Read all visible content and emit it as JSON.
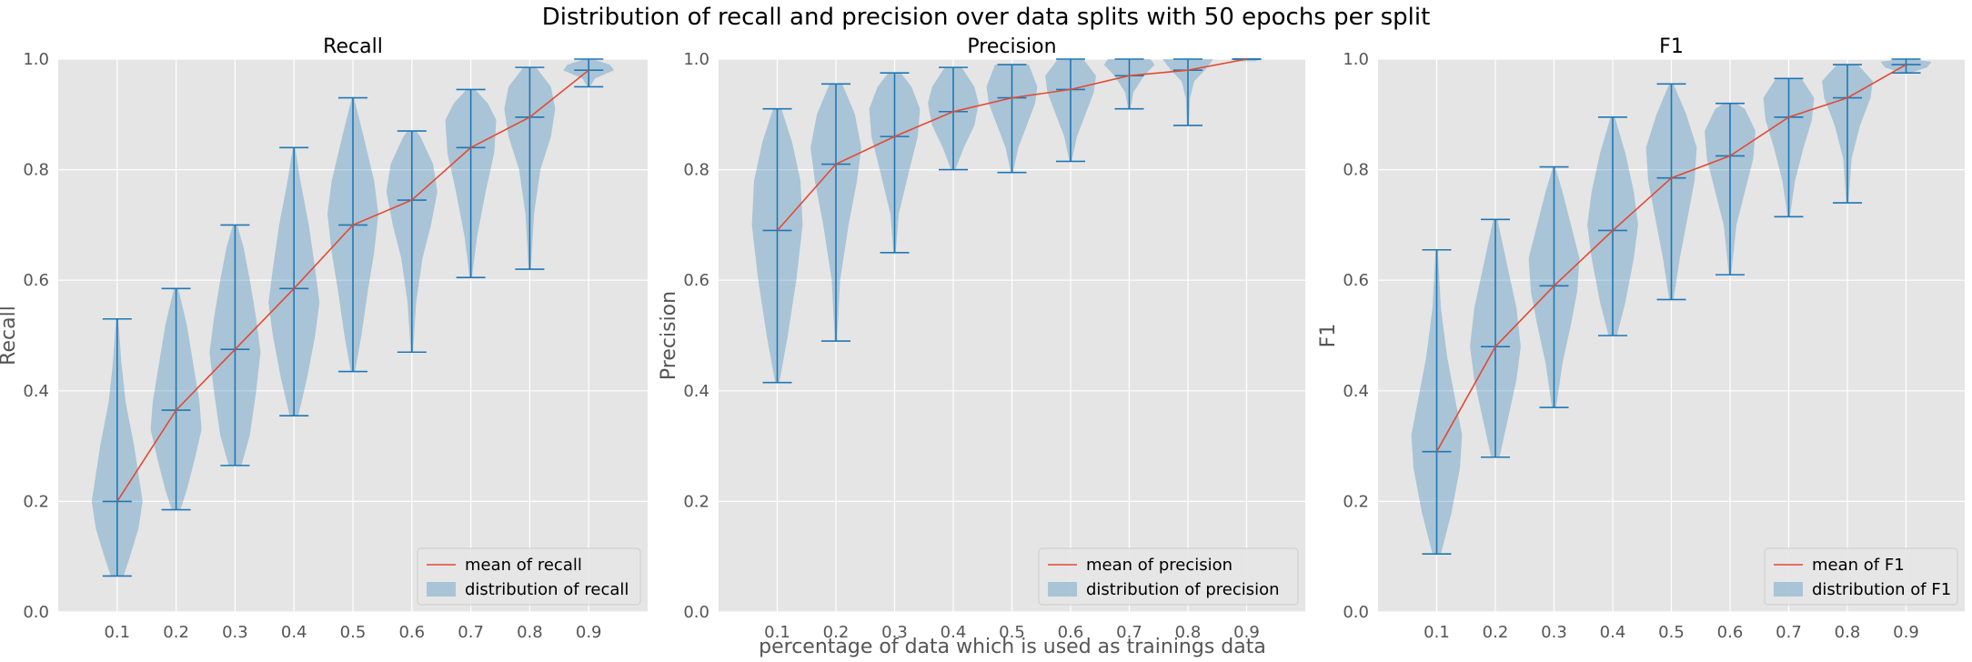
{
  "figure": {
    "suptitle": "Distribution of recall and precision over data splits with 50 epochs per split",
    "xlabel": "percentage of data which is used as trainings data"
  },
  "colors": {
    "background": "#e5e5e5",
    "grid": "#ffffff",
    "violin_fill": "#1f77b4",
    "violin_line": "#1f77b4",
    "mean_line": "#e24a33"
  },
  "chart_data": [
    {
      "type": "violin",
      "title": "Recall",
      "ylabel": "Recall",
      "xlabel": "",
      "x": [
        0.1,
        0.2,
        0.3,
        0.4,
        0.5,
        0.6,
        0.7,
        0.8,
        0.9
      ],
      "x_tick_labels": [
        "0.1",
        "0.2",
        "0.3",
        "0.4",
        "0.5",
        "0.6",
        "0.7",
        "0.8",
        "0.9"
      ],
      "ylim": [
        0.0,
        1.0
      ],
      "y_ticks": [
        "0.0",
        "0.2",
        "0.4",
        "0.6",
        "0.8",
        "1.0"
      ],
      "grid": true,
      "legend_position": "lower-right",
      "legend": [
        "mean of recall",
        "distribution of recall"
      ],
      "mean": [
        0.2,
        0.365,
        0.475,
        0.585,
        0.7,
        0.745,
        0.84,
        0.895,
        0.98
      ],
      "min": [
        0.065,
        0.185,
        0.265,
        0.355,
        0.435,
        0.47,
        0.605,
        0.62,
        0.95
      ],
      "max": [
        0.53,
        0.585,
        0.7,
        0.84,
        0.93,
        0.87,
        0.945,
        0.985,
        1.0
      ],
      "violins": [
        [
          [
            0.065,
            0.03
          ],
          [
            0.1,
            0.06
          ],
          [
            0.15,
            0.1
          ],
          [
            0.2,
            0.12
          ],
          [
            0.25,
            0.1
          ],
          [
            0.3,
            0.08
          ],
          [
            0.38,
            0.04
          ],
          [
            0.45,
            0.02
          ],
          [
            0.53,
            0.005
          ]
        ],
        [
          [
            0.185,
            0.02
          ],
          [
            0.22,
            0.05
          ],
          [
            0.28,
            0.09
          ],
          [
            0.33,
            0.12
          ],
          [
            0.38,
            0.11
          ],
          [
            0.45,
            0.08
          ],
          [
            0.52,
            0.05
          ],
          [
            0.585,
            0.01
          ]
        ],
        [
          [
            0.265,
            0.03
          ],
          [
            0.32,
            0.07
          ],
          [
            0.4,
            0.1
          ],
          [
            0.47,
            0.12
          ],
          [
            0.53,
            0.1
          ],
          [
            0.6,
            0.07
          ],
          [
            0.66,
            0.04
          ],
          [
            0.7,
            0.01
          ]
        ],
        [
          [
            0.355,
            0.02
          ],
          [
            0.42,
            0.06
          ],
          [
            0.5,
            0.1
          ],
          [
            0.56,
            0.12
          ],
          [
            0.62,
            0.1
          ],
          [
            0.7,
            0.07
          ],
          [
            0.78,
            0.03
          ],
          [
            0.84,
            0.005
          ]
        ],
        [
          [
            0.435,
            0.01
          ],
          [
            0.5,
            0.04
          ],
          [
            0.58,
            0.07
          ],
          [
            0.65,
            0.1
          ],
          [
            0.72,
            0.12
          ],
          [
            0.78,
            0.1
          ],
          [
            0.86,
            0.05
          ],
          [
            0.93,
            0.005
          ]
        ],
        [
          [
            0.47,
            0.005
          ],
          [
            0.56,
            0.02
          ],
          [
            0.64,
            0.05
          ],
          [
            0.7,
            0.09
          ],
          [
            0.76,
            0.12
          ],
          [
            0.81,
            0.1
          ],
          [
            0.86,
            0.04
          ],
          [
            0.87,
            0.02
          ]
        ],
        [
          [
            0.605,
            0.005
          ],
          [
            0.68,
            0.03
          ],
          [
            0.76,
            0.07
          ],
          [
            0.83,
            0.11
          ],
          [
            0.89,
            0.12
          ],
          [
            0.92,
            0.08
          ],
          [
            0.945,
            0.02
          ]
        ],
        [
          [
            0.62,
            0.005
          ],
          [
            0.72,
            0.02
          ],
          [
            0.8,
            0.05
          ],
          [
            0.86,
            0.1
          ],
          [
            0.91,
            0.12
          ],
          [
            0.95,
            0.1
          ],
          [
            0.985,
            0.03
          ]
        ],
        [
          [
            0.95,
            0.005
          ],
          [
            0.965,
            0.03
          ],
          [
            0.98,
            0.12
          ],
          [
            0.99,
            0.1
          ],
          [
            1.0,
            0.02
          ]
        ]
      ]
    },
    {
      "type": "violin",
      "title": "Precision",
      "ylabel": "Precision",
      "xlabel": "",
      "x": [
        0.1,
        0.2,
        0.3,
        0.4,
        0.5,
        0.6,
        0.7,
        0.8,
        0.9
      ],
      "x_tick_labels": [
        "0.1",
        "0.2",
        "0.3",
        "0.4",
        "0.5",
        "0.6",
        "0.7",
        "0.8",
        "0.9"
      ],
      "ylim": [
        0.0,
        1.0
      ],
      "y_ticks": [
        "0.0",
        "0.2",
        "0.4",
        "0.6",
        "0.8",
        "1.0"
      ],
      "grid": true,
      "legend_position": "lower-right",
      "legend": [
        "mean of precision",
        "distribution of precision"
      ],
      "mean": [
        0.69,
        0.81,
        0.86,
        0.905,
        0.93,
        0.945,
        0.97,
        0.98,
        1.0
      ],
      "min": [
        0.415,
        0.49,
        0.65,
        0.8,
        0.795,
        0.815,
        0.91,
        0.88,
        1.0
      ],
      "max": [
        0.91,
        0.955,
        0.975,
        0.985,
        0.99,
        1.0,
        1.0,
        1.0,
        1.0
      ],
      "violins": [
        [
          [
            0.415,
            0.01
          ],
          [
            0.5,
            0.05
          ],
          [
            0.6,
            0.09
          ],
          [
            0.7,
            0.12
          ],
          [
            0.78,
            0.11
          ],
          [
            0.85,
            0.07
          ],
          [
            0.91,
            0.02
          ]
        ],
        [
          [
            0.49,
            0.005
          ],
          [
            0.6,
            0.02
          ],
          [
            0.7,
            0.06
          ],
          [
            0.78,
            0.1
          ],
          [
            0.84,
            0.12
          ],
          [
            0.9,
            0.09
          ],
          [
            0.955,
            0.03
          ]
        ],
        [
          [
            0.65,
            0.005
          ],
          [
            0.72,
            0.02
          ],
          [
            0.8,
            0.07
          ],
          [
            0.86,
            0.11
          ],
          [
            0.91,
            0.12
          ],
          [
            0.95,
            0.08
          ],
          [
            0.975,
            0.03
          ]
        ],
        [
          [
            0.8,
            0.01
          ],
          [
            0.84,
            0.05
          ],
          [
            0.88,
            0.1
          ],
          [
            0.92,
            0.12
          ],
          [
            0.95,
            0.1
          ],
          [
            0.985,
            0.04
          ]
        ],
        [
          [
            0.795,
            0.005
          ],
          [
            0.84,
            0.03
          ],
          [
            0.88,
            0.07
          ],
          [
            0.92,
            0.11
          ],
          [
            0.95,
            0.12
          ],
          [
            0.99,
            0.08
          ]
        ],
        [
          [
            0.815,
            0.005
          ],
          [
            0.86,
            0.03
          ],
          [
            0.9,
            0.07
          ],
          [
            0.94,
            0.11
          ],
          [
            0.97,
            0.12
          ],
          [
            1.0,
            0.06
          ]
        ],
        [
          [
            0.91,
            0.005
          ],
          [
            0.94,
            0.02
          ],
          [
            0.97,
            0.07
          ],
          [
            0.99,
            0.12
          ],
          [
            1.0,
            0.1
          ]
        ],
        [
          [
            0.88,
            0.005
          ],
          [
            0.93,
            0.01
          ],
          [
            0.96,
            0.03
          ],
          [
            0.98,
            0.08
          ],
          [
            1.0,
            0.12
          ]
        ],
        [
          [
            0.996,
            0.04
          ],
          [
            1.0,
            0.08
          ]
        ]
      ]
    },
    {
      "type": "violin",
      "title": "F1",
      "ylabel": "F1",
      "xlabel": "",
      "x": [
        0.1,
        0.2,
        0.3,
        0.4,
        0.5,
        0.6,
        0.7,
        0.8,
        0.9
      ],
      "x_tick_labels": [
        "0.1",
        "0.2",
        "0.3",
        "0.4",
        "0.5",
        "0.6",
        "0.7",
        "0.8",
        "0.9"
      ],
      "ylim": [
        0.0,
        1.0
      ],
      "y_ticks": [
        "0.0",
        "0.2",
        "0.4",
        "0.6",
        "0.8",
        "1.0"
      ],
      "grid": true,
      "legend_position": "lower-right",
      "legend": [
        "mean of F1",
        "distribution of F1"
      ],
      "mean": [
        0.29,
        0.48,
        0.59,
        0.69,
        0.785,
        0.825,
        0.895,
        0.93,
        0.99
      ],
      "min": [
        0.105,
        0.28,
        0.37,
        0.5,
        0.565,
        0.61,
        0.715,
        0.74,
        0.975
      ],
      "max": [
        0.655,
        0.71,
        0.805,
        0.895,
        0.955,
        0.92,
        0.965,
        0.99,
        1.0
      ],
      "violins": [
        [
          [
            0.105,
            0.02
          ],
          [
            0.18,
            0.07
          ],
          [
            0.26,
            0.11
          ],
          [
            0.32,
            0.12
          ],
          [
            0.38,
            0.09
          ],
          [
            0.46,
            0.05
          ],
          [
            0.55,
            0.02
          ],
          [
            0.655,
            0.005
          ]
        ],
        [
          [
            0.28,
            0.02
          ],
          [
            0.35,
            0.06
          ],
          [
            0.42,
            0.1
          ],
          [
            0.48,
            0.12
          ],
          [
            0.55,
            0.1
          ],
          [
            0.62,
            0.06
          ],
          [
            0.71,
            0.01
          ]
        ],
        [
          [
            0.37,
            0.01
          ],
          [
            0.45,
            0.04
          ],
          [
            0.52,
            0.08
          ],
          [
            0.58,
            0.11
          ],
          [
            0.64,
            0.12
          ],
          [
            0.7,
            0.08
          ],
          [
            0.76,
            0.04
          ],
          [
            0.805,
            0.005
          ]
        ],
        [
          [
            0.5,
            0.02
          ],
          [
            0.56,
            0.06
          ],
          [
            0.64,
            0.1
          ],
          [
            0.7,
            0.12
          ],
          [
            0.76,
            0.1
          ],
          [
            0.83,
            0.06
          ],
          [
            0.895,
            0.01
          ]
        ],
        [
          [
            0.565,
            0.01
          ],
          [
            0.64,
            0.04
          ],
          [
            0.72,
            0.08
          ],
          [
            0.78,
            0.11
          ],
          [
            0.84,
            0.12
          ],
          [
            0.9,
            0.07
          ],
          [
            0.955,
            0.01
          ]
        ],
        [
          [
            0.61,
            0.005
          ],
          [
            0.7,
            0.03
          ],
          [
            0.76,
            0.07
          ],
          [
            0.82,
            0.11
          ],
          [
            0.87,
            0.12
          ],
          [
            0.91,
            0.07
          ],
          [
            0.92,
            0.03
          ]
        ],
        [
          [
            0.715,
            0.005
          ],
          [
            0.78,
            0.03
          ],
          [
            0.84,
            0.07
          ],
          [
            0.89,
            0.11
          ],
          [
            0.93,
            0.12
          ],
          [
            0.965,
            0.06
          ]
        ],
        [
          [
            0.74,
            0.005
          ],
          [
            0.82,
            0.02
          ],
          [
            0.88,
            0.06
          ],
          [
            0.93,
            0.11
          ],
          [
            0.96,
            0.12
          ],
          [
            0.99,
            0.05
          ]
        ],
        [
          [
            0.975,
            0.02
          ],
          [
            0.985,
            0.1
          ],
          [
            0.995,
            0.12
          ],
          [
            1.0,
            0.03
          ]
        ]
      ]
    }
  ]
}
